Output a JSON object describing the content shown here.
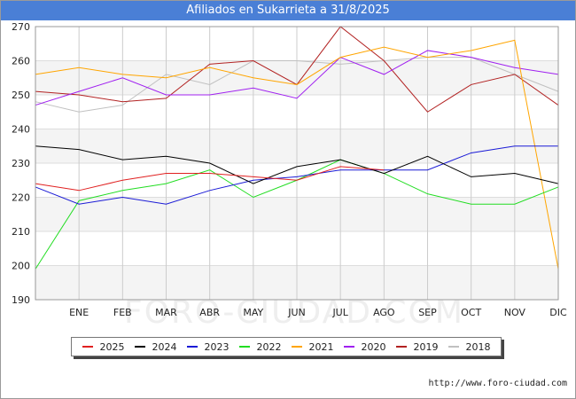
{
  "title": "Afiliados en Sukarrieta a 31/8/2025",
  "footer_url": "http://www.foro-ciudad.com",
  "watermark": "FORO-CIUDAD.COM",
  "chart_data": {
    "type": "line",
    "categories": [
      "",
      "ENE",
      "FEB",
      "MAR",
      "ABR",
      "MAY",
      "JUN",
      "JUL",
      "AGO",
      "SEP",
      "OCT",
      "NOV",
      "DIC"
    ],
    "ylim": [
      190,
      270
    ],
    "yticks": [
      190,
      200,
      210,
      220,
      230,
      240,
      250,
      260,
      270
    ],
    "grid": true,
    "legend_position": "bottom",
    "series": [
      {
        "name": "2025",
        "color": "#e02020",
        "values": [
          224,
          222,
          225,
          227,
          227,
          226,
          225,
          229,
          228,
          null,
          null,
          null,
          null
        ]
      },
      {
        "name": "2024",
        "color": "#000000",
        "values": [
          235,
          234,
          231,
          232,
          230,
          224,
          229,
          231,
          227,
          232,
          226,
          227,
          224
        ]
      },
      {
        "name": "2023",
        "color": "#1a1ad6",
        "values": [
          223,
          218,
          220,
          218,
          222,
          225,
          226,
          228,
          228,
          228,
          233,
          235,
          235
        ]
      },
      {
        "name": "2022",
        "color": "#22dd22",
        "values": [
          199,
          219,
          222,
          224,
          228,
          220,
          225,
          231,
          227,
          221,
          218,
          218,
          223
        ]
      },
      {
        "name": "2021",
        "color": "#ffa500",
        "values": [
          256,
          258,
          256,
          255,
          258,
          255,
          253,
          261,
          264,
          261,
          263,
          266,
          199
        ]
      },
      {
        "name": "2020",
        "color": "#a020f0",
        "values": [
          247,
          251,
          255,
          250,
          250,
          252,
          249,
          261,
          256,
          263,
          261,
          258,
          256
        ]
      },
      {
        "name": "2019",
        "color": "#b22222",
        "values": [
          251,
          250,
          248,
          249,
          259,
          260,
          253,
          270,
          260,
          245,
          253,
          256,
          247
        ]
      },
      {
        "name": "2018",
        "color": "#c0c0c0",
        "values": [
          248,
          245,
          247,
          256,
          253,
          260,
          260,
          259,
          260,
          261,
          261,
          256,
          251
        ]
      }
    ]
  }
}
